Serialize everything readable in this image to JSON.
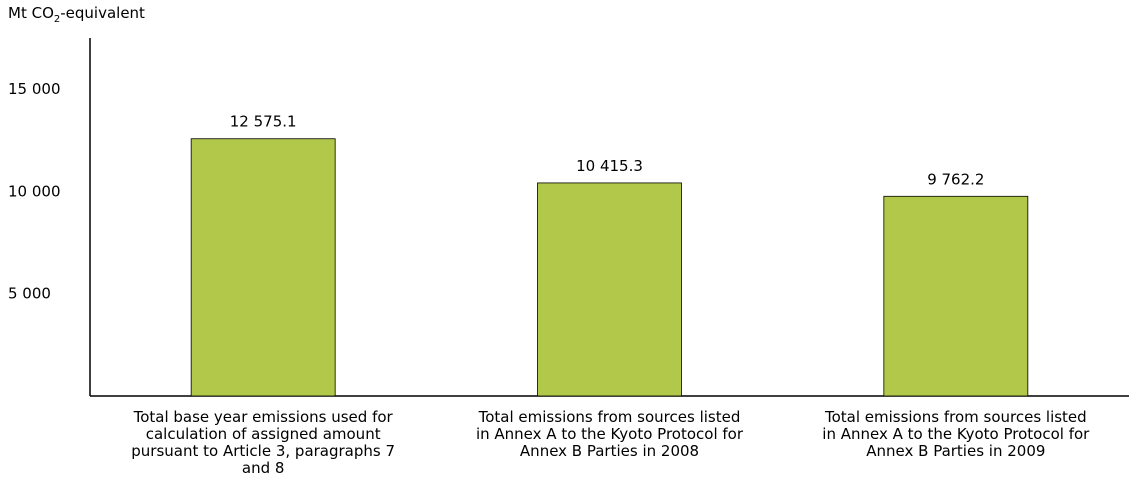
{
  "chart_data": {
    "type": "bar",
    "ylabel_prefix": "Mt CO",
    "ylabel_sub": "2",
    "ylabel_suffix": "-equivalent",
    "ylim": [
      0,
      17500
    ],
    "yticks": [
      5000,
      10000,
      15000
    ],
    "ytick_labels": [
      "5 000",
      "10 000",
      "15 000"
    ],
    "categories": [
      "Total base year emissions used for calculation of assigned amount pursuant to Article 3, paragraphs 7 and 8",
      "Total emissions from sources listed in Annex A to the Kyoto Protocol for Annex B Parties in 2008",
      "Total emissions from sources listed in Annex A to the Kyoto Protocol for Annex B Parties in 2009"
    ],
    "values": [
      12575.1,
      10415.3,
      9762.2
    ],
    "value_labels": [
      "12 575.1",
      "10 415.3",
      "9 762.2"
    ],
    "bar_color": "#b2c84a",
    "grid": false
  }
}
